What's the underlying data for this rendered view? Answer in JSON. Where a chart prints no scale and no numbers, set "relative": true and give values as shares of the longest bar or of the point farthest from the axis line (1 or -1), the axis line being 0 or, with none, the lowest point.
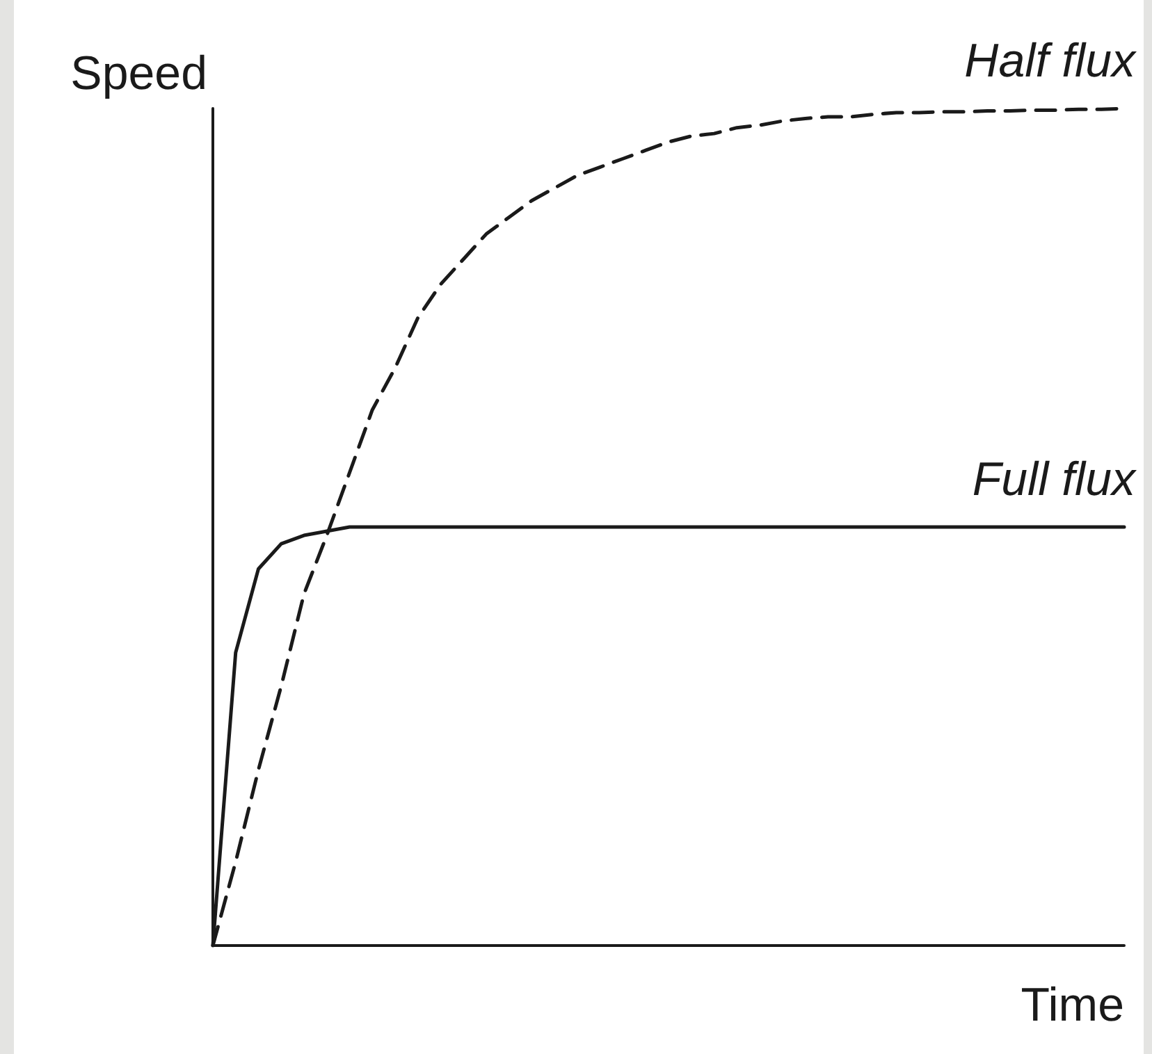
{
  "chart_data": {
    "type": "line",
    "relative": true,
    "xlabel": "Time",
    "ylabel": "Speed",
    "grid": false,
    "legend": false,
    "marker": "none",
    "categories": [
      null,
      null,
      null,
      null,
      null,
      null,
      null,
      null,
      null,
      null,
      null,
      null,
      null,
      null,
      null,
      null,
      null,
      null,
      null,
      null,
      null,
      null,
      null,
      null,
      null,
      null,
      null,
      null,
      null,
      null,
      null,
      null,
      null,
      null,
      null,
      null,
      null,
      null,
      null,
      null,
      null
    ],
    "series": [
      {
        "name": "Half flux",
        "color": "#1a1a1a",
        "line_style": "dashed",
        "values": [
          0,
          0.1,
          0.21,
          0.31,
          0.42,
          0.49,
          0.565,
          0.64,
          0.69,
          0.75,
          0.79,
          0.82,
          0.85,
          0.87,
          0.89,
          0.905,
          0.92,
          0.93,
          0.94,
          0.95,
          0.96,
          0.967,
          0.97,
          0.977,
          0.98,
          0.985,
          0.988,
          0.99,
          0.99,
          0.993,
          0.995,
          0.995,
          0.996,
          0.996,
          0.997,
          0.997,
          0.998,
          0.998,
          0.999,
          0.999,
          1
        ]
      },
      {
        "name": "Full flux",
        "color": "#1a1a1a",
        "line_style": "solid",
        "values": [
          0,
          0.35,
          0.45,
          0.48,
          0.49,
          0.495,
          0.5,
          0.5,
          0.5,
          0.5,
          0.5,
          0.5,
          0.5,
          0.5,
          0.5,
          0.5,
          0.5,
          0.5,
          0.5,
          0.5,
          0.5,
          0.5,
          0.5,
          0.5,
          0.5,
          0.5,
          0.5,
          0.5,
          0.5,
          0.5,
          0.5,
          0.5,
          0.5,
          0.5,
          0.5,
          0.5,
          0.5,
          0.5,
          0.5,
          0.5,
          0.5
        ]
      }
    ]
  }
}
